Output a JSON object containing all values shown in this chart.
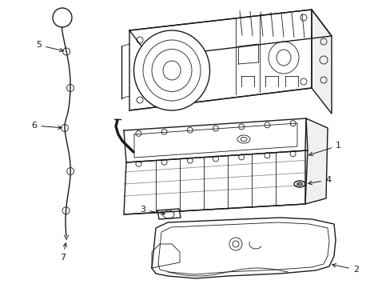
{
  "background_color": "#ffffff",
  "line_color": "#1a1a1a",
  "fig_width": 4.89,
  "fig_height": 3.6,
  "dpi": 100,
  "lw_main": 1.0,
  "lw_thin": 0.6,
  "lw_thick": 1.4
}
